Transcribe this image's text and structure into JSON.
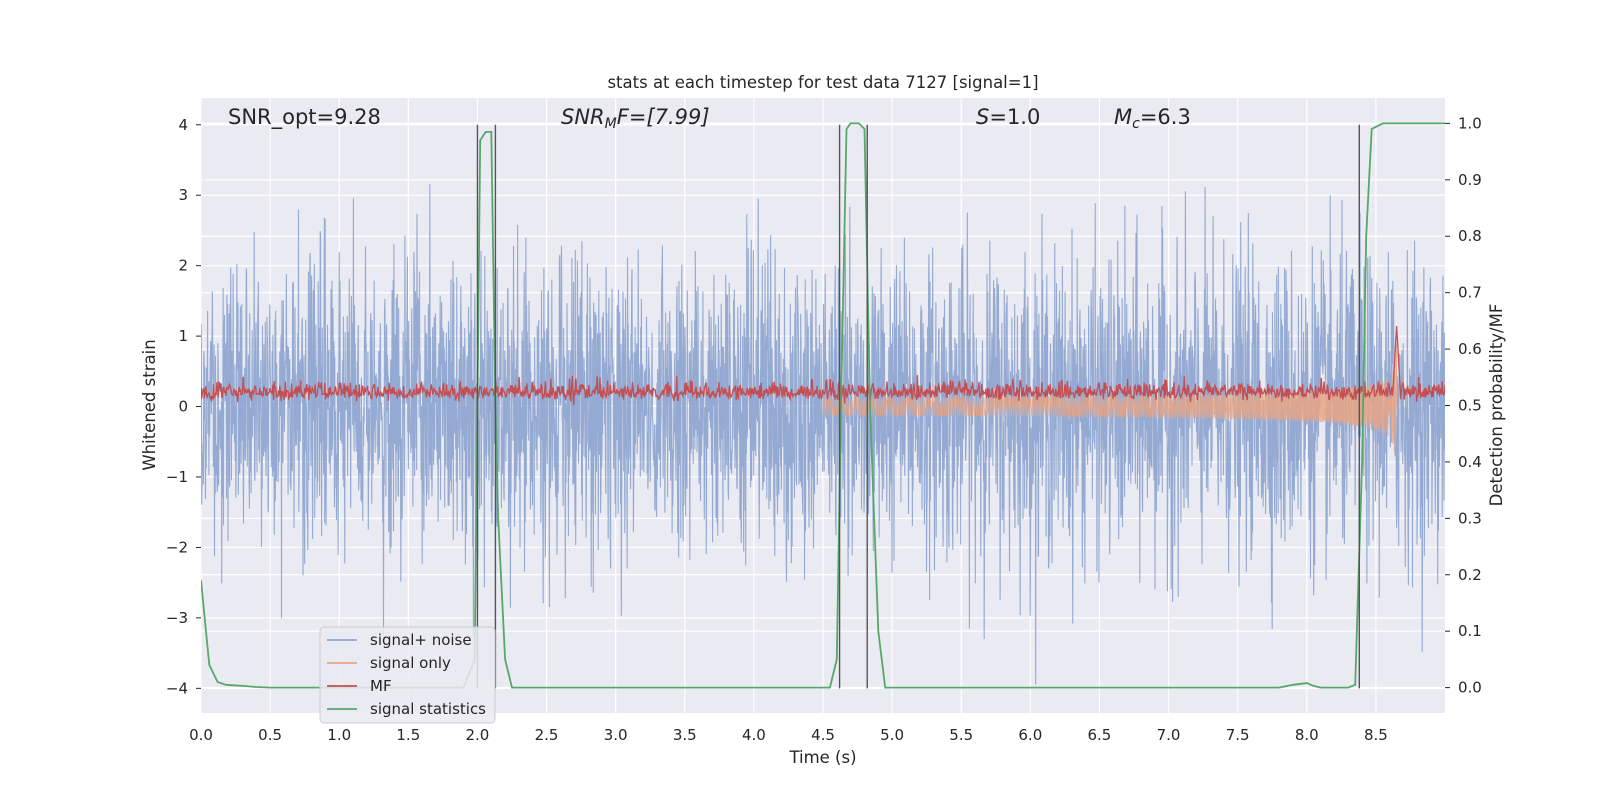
{
  "chart_data": {
    "type": "line",
    "title": "stats at each timestep for test data 7127 [signal=1]",
    "xlabel": "Time (s)",
    "ylabel": "Whitened strain",
    "ylabel_right": "Detection probability/MF",
    "xlim": [
      0.0,
      9.0
    ],
    "ylim": [
      -4.35,
      4.38
    ],
    "ylim_right": [
      -0.045,
      1.045
    ],
    "x_ticks": [
      "0.0",
      "0.5",
      "1.0",
      "1.5",
      "2.0",
      "2.5",
      "3.0",
      "3.5",
      "4.0",
      "4.5",
      "5.0",
      "5.5",
      "6.0",
      "6.5",
      "7.0",
      "7.5",
      "8.0",
      "8.5"
    ],
    "y_ticks": [
      "4",
      "3",
      "2",
      "1",
      "0",
      "−1",
      "−2",
      "−3",
      "−4"
    ],
    "y_ticks_right": [
      "1.0",
      "0.9",
      "0.8",
      "0.7",
      "0.6",
      "0.5",
      "0.4",
      "0.3",
      "0.2",
      "0.1",
      "0.0"
    ],
    "grid": true,
    "annotations": {
      "snr_opt": "SNR_opt=9.28",
      "snr_mf_label": "SNR",
      "snr_mf_sub": "M",
      "snr_mf_rest": "F=[7.99]",
      "s_label": "S",
      "s_value": "=1.0",
      "mc_label": "M",
      "mc_sub": "c",
      "mc_value": "=6.3"
    },
    "vertical_lines": [
      2.0,
      2.13,
      4.62,
      4.82,
      8.38
    ],
    "series": [
      {
        "name": "signal+ noise",
        "color": "#8fa7d0",
        "axis": "left",
        "kind": "noise",
        "amplitude_sd": 1.05
      },
      {
        "name": "signal only",
        "color": "#e8a485",
        "axis": "left",
        "kind": "chirp",
        "t_merger": 8.65,
        "peak_amplitude": 1.1
      },
      {
        "name": "MF",
        "color": "#c44e52",
        "axis": "left",
        "kind": "mf",
        "mean": 0.2,
        "spread": 0.08,
        "peak_time": 8.65,
        "peak_value": 1.05
      },
      {
        "name": "signal statistics",
        "color": "#55a868",
        "axis": "right",
        "x": [
          0.0,
          0.06,
          0.12,
          0.18,
          0.3,
          0.4,
          0.5,
          1.0,
          1.5,
          1.9,
          1.98,
          2.02,
          2.06,
          2.1,
          2.13,
          2.15,
          2.2,
          2.25,
          2.3,
          3.0,
          4.0,
          4.55,
          4.6,
          4.63,
          4.67,
          4.7,
          4.76,
          4.8,
          4.84,
          4.9,
          4.95,
          5.0,
          6.0,
          7.0,
          7.8,
          7.9,
          8.0,
          8.05,
          8.1,
          8.3,
          8.35,
          8.4,
          8.43,
          8.47,
          8.55,
          8.7,
          9.0
        ],
        "y": [
          0.19,
          0.04,
          0.01,
          0.005,
          0.003,
          0.001,
          0.0,
          0.0,
          0.0,
          0.0,
          0.05,
          0.97,
          0.985,
          0.985,
          0.5,
          0.3,
          0.05,
          0.0,
          0.0,
          0.0,
          0.0,
          0.0,
          0.05,
          0.5,
          0.99,
          1.0,
          1.0,
          0.99,
          0.5,
          0.1,
          0.0,
          0.0,
          0.0,
          0.0,
          0.0,
          0.005,
          0.008,
          0.003,
          0.0,
          0.0,
          0.005,
          0.4,
          0.8,
          0.99,
          1.0,
          1.0,
          1.0
        ]
      }
    ],
    "legend_position": "lower-left"
  }
}
